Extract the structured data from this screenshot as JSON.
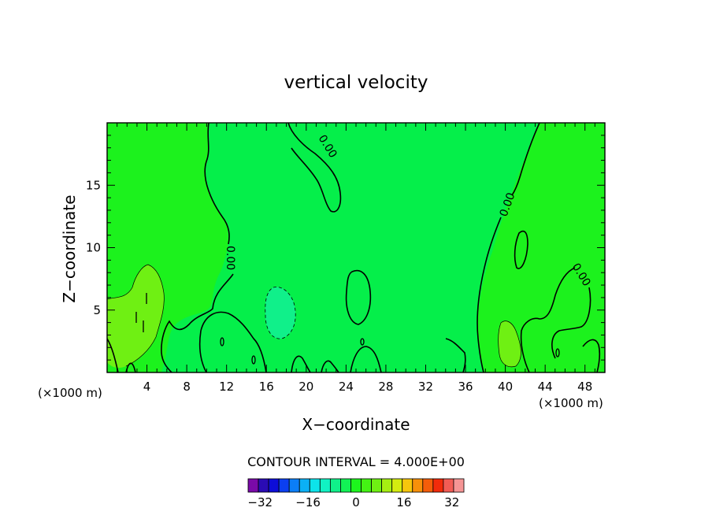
{
  "chart_data": {
    "type": "contour",
    "title": "vertical velocity",
    "xlabel": "X−coordinate",
    "ylabel": "Z−coordinate",
    "x_unit_left": "(×1000 m)",
    "x_unit_right": "(×1000 m)",
    "xlim": [
      0,
      50
    ],
    "ylim": [
      0,
      20
    ],
    "x_ticks": [
      4,
      8,
      12,
      16,
      20,
      24,
      28,
      32,
      36,
      40,
      44,
      48
    ],
    "y_ticks": [
      5,
      10,
      15
    ],
    "contour_labels": [
      "0.00",
      "0.00",
      "0.00",
      "0.00"
    ],
    "contour_interval_text": "CONTOUR INTERVAL = 4.000E+00",
    "colorbar": {
      "tick_labels": [
        "−32",
        "−16",
        "0",
        "16",
        "32"
      ],
      "tick_values": [
        -32,
        -16,
        0,
        16,
        32
      ],
      "min": -36,
      "max": 36,
      "step": 4,
      "colors": [
        "#7a0aa8",
        "#2a0bb4",
        "#0d0dd8",
        "#0b3ff0",
        "#0b7ef7",
        "#0bb0f5",
        "#0de3ea",
        "#11f2c3",
        "#10f08a",
        "#12f255",
        "#1df51d",
        "#44f214",
        "#6ff013",
        "#a5ee12",
        "#d4ec10",
        "#f6c60d",
        "#f7900a",
        "#f45d0a",
        "#f22b0b",
        "#f25c55",
        "#f59595"
      ]
    },
    "fields": {
      "background": "#1cf21d",
      "central_band": "#05ef4a",
      "weak_positive": "#6ff013",
      "weak_negative": "#10f08a"
    },
    "grid": false,
    "legend": "colorbar below plot"
  }
}
